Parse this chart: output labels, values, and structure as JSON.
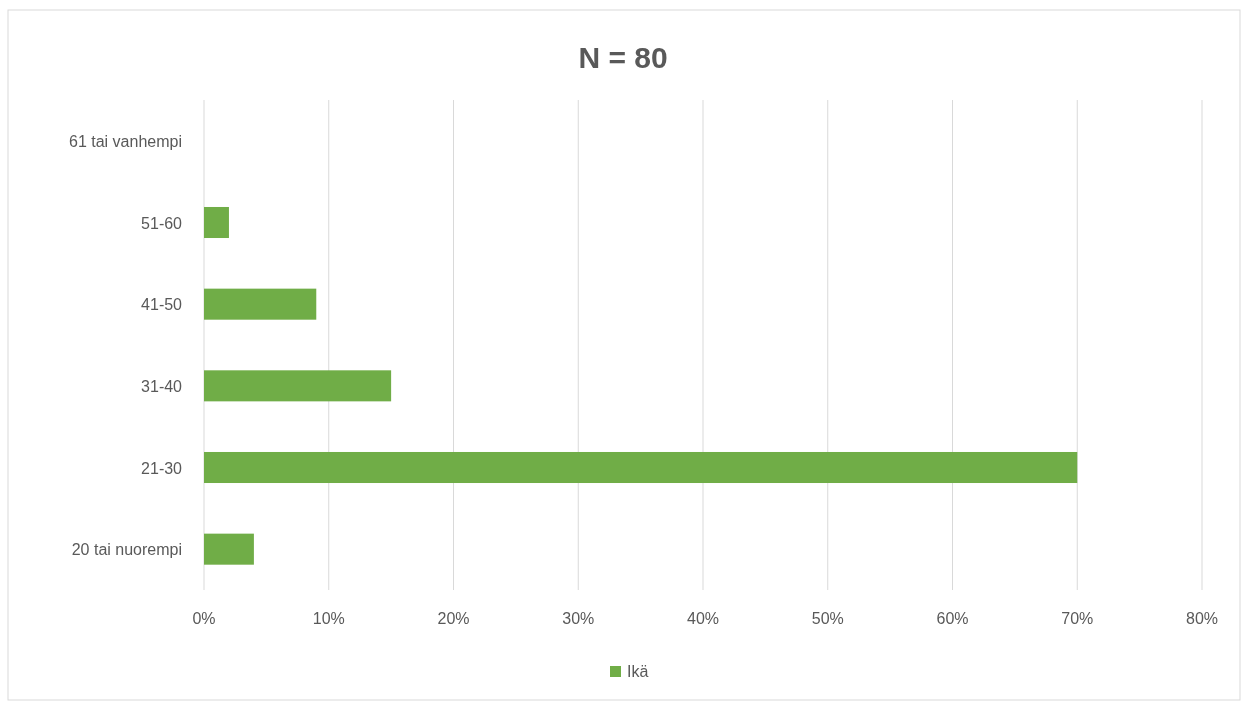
{
  "chart_data": {
    "type": "bar",
    "orientation": "horizontal",
    "title": "N = 80",
    "categories": [
      "61 tai vanhempi",
      "51-60",
      "41-50",
      "31-40",
      "21-30",
      "20 tai nuorempi"
    ],
    "series": [
      {
        "name": "Ikä",
        "color": "#70ad47",
        "values": [
          0,
          2,
          9,
          15,
          70,
          4
        ]
      }
    ],
    "xlim": [
      0,
      80
    ],
    "xticks": [
      {
        "value": 0,
        "label": "0%"
      },
      {
        "value": 10,
        "label": "10%"
      },
      {
        "value": 20,
        "label": "20%"
      },
      {
        "value": 30,
        "label": "30%"
      },
      {
        "value": 40,
        "label": "40%"
      },
      {
        "value": 50,
        "label": "50%"
      },
      {
        "value": 60,
        "label": "60%"
      },
      {
        "value": 70,
        "label": "70%"
      },
      {
        "value": 80,
        "label": "80%"
      }
    ],
    "grid": "x",
    "legend": "bottom"
  }
}
